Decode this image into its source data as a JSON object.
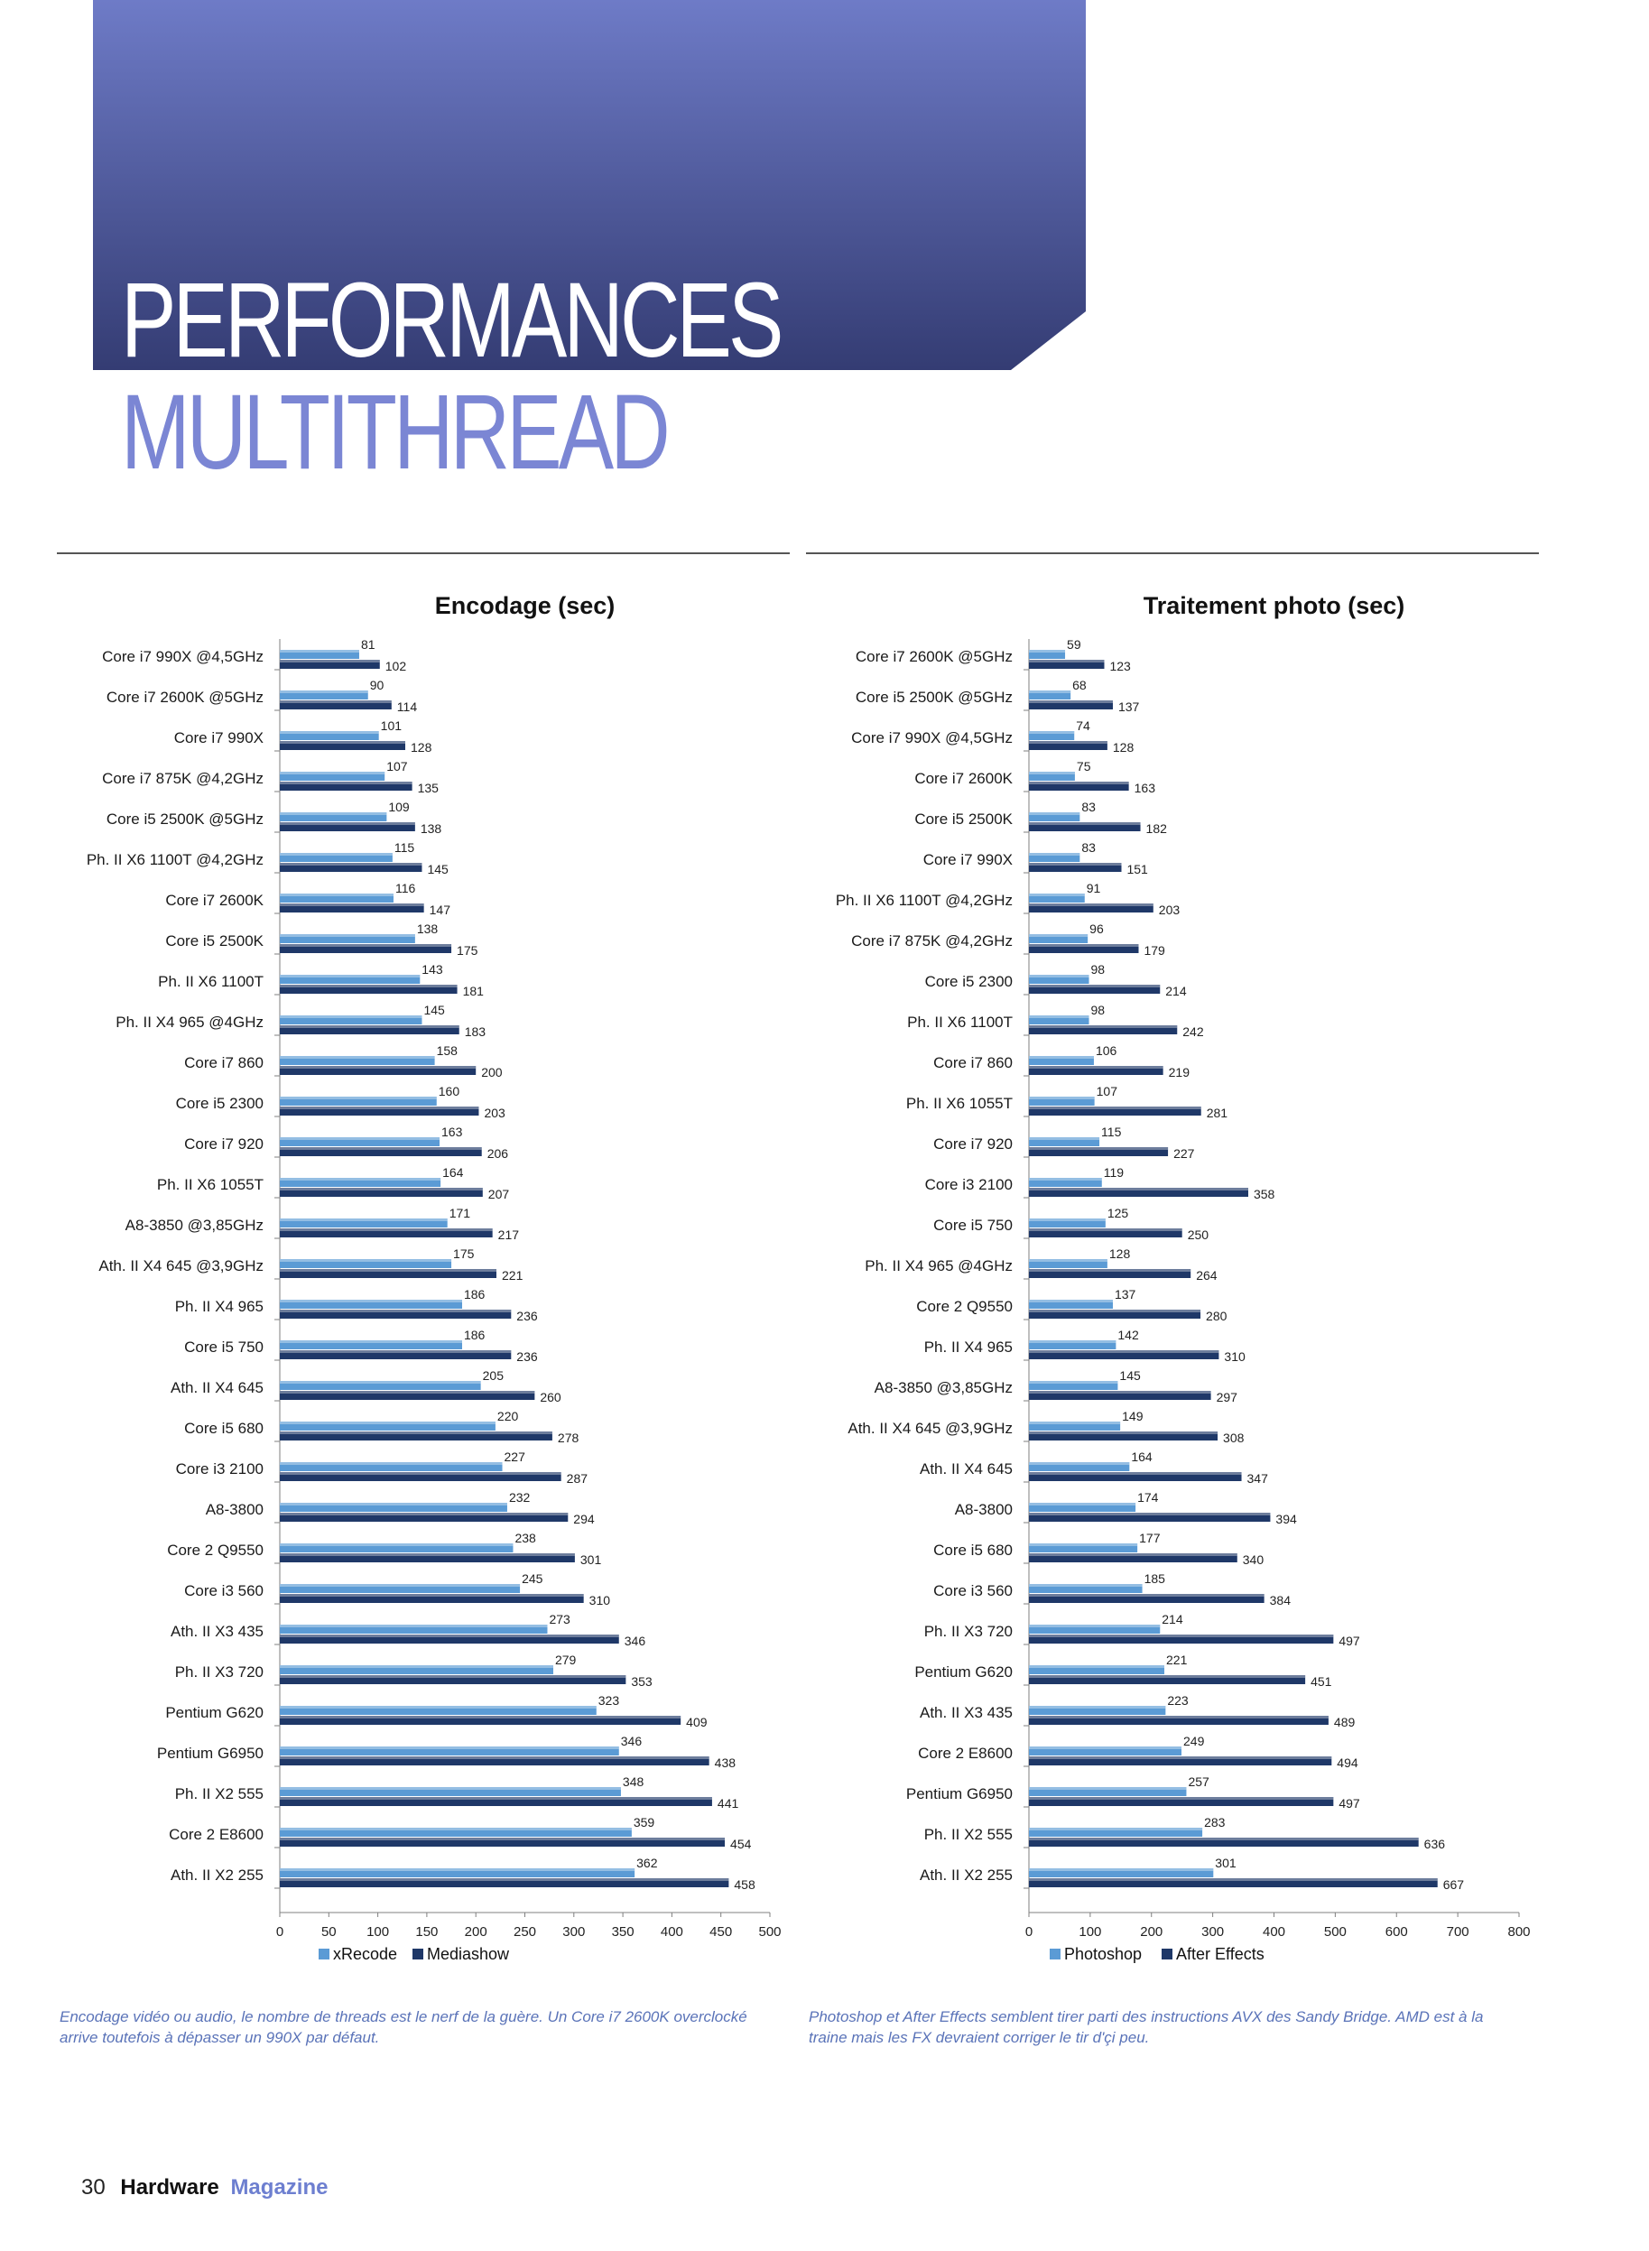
{
  "page": {
    "title_line1": "PERFORMANCES",
    "title_line2": "MULTITHREAD",
    "footer_page_number": "30",
    "footer_magazine_part1": "Hardware",
    "footer_magazine_part2": "Magazine",
    "colors": {
      "banner_top": "#6e7bc7",
      "banner_bottom": "#343c73",
      "title_accent": "#7b86d4",
      "caption": "#5a73b8"
    }
  },
  "captions": [
    "Encodage vidéo ou audio, le nombre de threads est le nerf de la guère. Un Core i7 2600K overclocké arrive toutefois à dépasser un 990X par défaut.",
    "Photoshop et After Effects semblent tirer parti des instructions AVX des Sandy Bridge. AMD est à la traine mais les FX devraient corriger le tir d'çi peu."
  ],
  "chart_data": [
    {
      "type": "bar",
      "orientation": "horizontal",
      "title": "Encodage (sec)",
      "categories": [
        "Core i7 990X @4,5GHz",
        "Core i7 2600K @5GHz",
        "Core i7 990X",
        "Core i7 875K @4,2GHz",
        "Core i5 2500K @5GHz",
        "Ph. II X6 1100T @4,2GHz",
        "Core i7 2600K",
        "Core i5 2500K",
        "Ph. II X6 1100T",
        "Ph. II X4 965 @4GHz",
        "Core i7 860",
        "Core i5 2300",
        "Core i7 920",
        "Ph. II X6 1055T",
        "A8-3850 @3,85GHz",
        "Ath. II X4 645 @3,9GHz",
        "Ph. II X4 965",
        "Core i5 750",
        "Ath. II X4 645",
        "Core i5 680",
        "Core i3 2100",
        "A8-3800",
        "Core 2 Q9550",
        "Core i3 560",
        "Ath. II X3 435",
        "Ph. II X3 720",
        "Pentium G620",
        "Pentium G6950",
        "Ph. II X2 555",
        "Core 2 E8600",
        "Ath. II X2 255"
      ],
      "series": [
        {
          "name": "xRecode",
          "color": "#5b9bd5",
          "values": [
            81,
            90,
            101,
            107,
            109,
            115,
            116,
            138,
            143,
            145,
            158,
            160,
            163,
            164,
            171,
            175,
            186,
            186,
            205,
            220,
            227,
            232,
            238,
            245,
            273,
            279,
            323,
            346,
            348,
            359,
            362
          ]
        },
        {
          "name": "Mediashow",
          "color": "#1f3868",
          "values": [
            102,
            114,
            128,
            135,
            138,
            145,
            147,
            175,
            181,
            183,
            200,
            203,
            206,
            207,
            217,
            221,
            236,
            236,
            260,
            278,
            287,
            294,
            301,
            310,
            346,
            353,
            409,
            438,
            441,
            454,
            458
          ]
        }
      ],
      "xlim": [
        0,
        500
      ],
      "xticks": [
        "0",
        "50",
        "100",
        "150",
        "200",
        "250",
        "300",
        "350",
        "400",
        "450",
        "500"
      ],
      "legend": "bottom",
      "grid": false
    },
    {
      "type": "bar",
      "orientation": "horizontal",
      "title": "Traitement photo (sec)",
      "categories": [
        "Core i7 2600K @5GHz",
        "Core i5 2500K @5GHz",
        "Core i7 990X @4,5GHz",
        "Core i7 2600K",
        "Core i5 2500K",
        "Core i7 990X",
        "Ph. II X6 1100T @4,2GHz",
        "Core i7 875K @4,2GHz",
        "Core i5 2300",
        "Ph. II X6 1100T",
        "Core i7 860",
        "Ph. II X6 1055T",
        "Core i7 920",
        "Core i3 2100",
        "Core i5 750",
        "Ph. II X4 965 @4GHz",
        "Core 2 Q9550",
        "Ph. II X4 965",
        "A8-3850 @3,85GHz",
        "Ath. II X4 645 @3,9GHz",
        "Ath. II X4 645",
        "A8-3800",
        "Core i5 680",
        "Core i3 560",
        "Ph. II X3 720",
        "Pentium G620",
        "Ath. II X3 435",
        "Core 2 E8600",
        "Pentium G6950",
        "Ph. II X2 555",
        "Ath. II X2 255"
      ],
      "series": [
        {
          "name": "Photoshop",
          "color": "#5b9bd5",
          "values": [
            59,
            68,
            74,
            75,
            83,
            83,
            91,
            96,
            98,
            98,
            106,
            107,
            115,
            119,
            125,
            128,
            137,
            142,
            145,
            149,
            164,
            174,
            177,
            185,
            214,
            221,
            223,
            249,
            257,
            283,
            301
          ]
        },
        {
          "name": "After Effects",
          "color": "#1f3868",
          "values": [
            123,
            137,
            128,
            163,
            182,
            151,
            203,
            179,
            214,
            242,
            219,
            281,
            227,
            358,
            250,
            264,
            280,
            310,
            297,
            308,
            347,
            394,
            340,
            384,
            497,
            451,
            489,
            494,
            497,
            636,
            667
          ]
        }
      ],
      "xlim": [
        0,
        800
      ],
      "xticks": [
        "0",
        "100",
        "200",
        "300",
        "400",
        "500",
        "600",
        "700",
        "800"
      ],
      "legend": "bottom",
      "grid": false
    }
  ]
}
